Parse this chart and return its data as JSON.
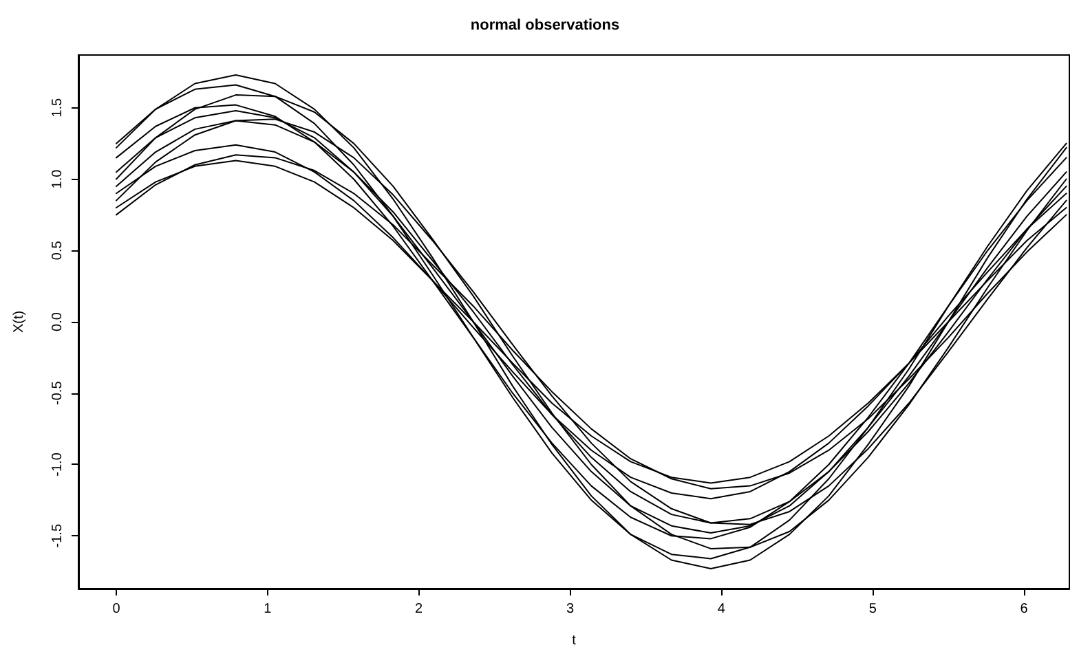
{
  "chart_data": {
    "type": "line",
    "title": "normal observations",
    "xlabel": "t",
    "ylabel": "X(t)",
    "x": [
      0,
      0.26,
      0.52,
      0.79,
      1.05,
      1.31,
      1.57,
      1.83,
      2.09,
      2.36,
      2.62,
      2.88,
      3.14,
      3.4,
      3.67,
      3.93,
      4.19,
      4.45,
      4.71,
      4.97,
      5.24,
      5.5,
      5.76,
      6.02,
      6.28
    ],
    "series": [
      {
        "color": "#000000",
        "values": [
          1.22,
          1.49,
          1.67,
          1.73,
          1.67,
          1.49,
          1.22,
          0.86,
          0.45,
          0,
          -0.45,
          -0.86,
          -1.22,
          -1.49,
          -1.67,
          -1.73,
          -1.67,
          -1.49,
          -1.22,
          -0.86,
          -0.45,
          0,
          0.45,
          0.86,
          1.22
        ]
      },
      {
        "color": "#000000",
        "values": [
          1.25,
          1.49,
          1.63,
          1.66,
          1.58,
          1.39,
          1.1,
          0.74,
          0.33,
          -0.11,
          -0.53,
          -0.92,
          -1.25,
          -1.49,
          -1.63,
          -1.66,
          -1.58,
          -1.39,
          -1.1,
          -0.74,
          -0.33,
          0.11,
          0.53,
          0.92,
          1.25
        ]
      },
      {
        "color": "#000000",
        "values": [
          1.0,
          1.29,
          1.49,
          1.59,
          1.58,
          1.47,
          1.25,
          0.95,
          0.58,
          0.18,
          -0.24,
          -0.64,
          -1.0,
          -1.29,
          -1.49,
          -1.59,
          -1.58,
          -1.47,
          -1.25,
          -0.95,
          -0.58,
          -0.18,
          0.24,
          0.64,
          1.0
        ]
      },
      {
        "color": "#000000",
        "values": [
          1.15,
          1.37,
          1.5,
          1.52,
          1.44,
          1.26,
          1.0,
          0.67,
          0.29,
          -0.11,
          -0.5,
          -0.85,
          -1.15,
          -1.37,
          -1.5,
          -1.52,
          -1.44,
          -1.26,
          -1.0,
          -0.67,
          -0.29,
          0.11,
          0.5,
          0.85,
          1.15
        ]
      },
      {
        "color": "#000000",
        "values": [
          0.95,
          1.19,
          1.35,
          1.41,
          1.38,
          1.26,
          1.05,
          0.77,
          0.43,
          0.07,
          -0.3,
          -0.65,
          -0.95,
          -1.19,
          -1.35,
          -1.41,
          -1.38,
          -1.26,
          -1.05,
          -0.77,
          -0.43,
          -0.07,
          0.3,
          0.65,
          0.95
        ]
      },
      {
        "color": "#000000",
        "values": [
          0.85,
          1.12,
          1.31,
          1.41,
          1.42,
          1.33,
          1.15,
          0.89,
          0.57,
          0.21,
          -0.16,
          -0.52,
          -0.85,
          -1.12,
          -1.31,
          -1.41,
          -1.42,
          -1.33,
          -1.15,
          -0.89,
          -0.57,
          -0.21,
          0.16,
          0.52,
          0.85
        ]
      },
      {
        "color": "#000000",
        "values": [
          1.05,
          1.29,
          1.43,
          1.48,
          1.43,
          1.29,
          1.05,
          0.74,
          0.38,
          0,
          -0.38,
          -0.74,
          -1.05,
          -1.29,
          -1.43,
          -1.48,
          -1.43,
          -1.29,
          -1.05,
          -0.74,
          -0.38,
          0,
          0.38,
          0.74,
          1.05
        ]
      },
      {
        "color": "#000000",
        "values": [
          0.9,
          1.09,
          1.2,
          1.24,
          1.19,
          1.05,
          0.85,
          0.59,
          0.29,
          -0.04,
          -0.35,
          -0.65,
          -0.9,
          -1.09,
          -1.2,
          -1.24,
          -1.19,
          -1.05,
          -0.85,
          -0.59,
          -0.29,
          0.04,
          0.35,
          0.65,
          0.9
        ]
      },
      {
        "color": "#000000",
        "values": [
          0.8,
          0.98,
          1.09,
          1.13,
          1.09,
          0.98,
          0.8,
          0.57,
          0.29,
          0,
          -0.29,
          -0.57,
          -0.8,
          -0.98,
          -1.09,
          -1.13,
          -1.09,
          -0.98,
          -0.8,
          -0.57,
          -0.29,
          0,
          0.29,
          0.57,
          0.8
        ]
      },
      {
        "color": "#000000",
        "values": [
          0.75,
          0.96,
          1.1,
          1.17,
          1.15,
          1.06,
          0.9,
          0.68,
          0.4,
          0.11,
          -0.2,
          -0.49,
          -0.75,
          -0.96,
          -1.1,
          -1.17,
          -1.15,
          -1.06,
          -0.9,
          -0.68,
          -0.4,
          -0.11,
          0.2,
          0.49,
          0.75
        ]
      }
    ],
    "xlim": [
      -0.25,
      6.3
    ],
    "ylim": [
      -1.87,
      1.87
    ],
    "xticks": [
      0,
      1,
      2,
      3,
      4,
      5,
      6
    ],
    "yticks": [
      {
        "value": -1.5,
        "label": "-1.5"
      },
      {
        "value": -1,
        "label": "-1.0"
      },
      {
        "value": -0.5,
        "label": "-0.5"
      },
      {
        "value": 0,
        "label": "0.0"
      },
      {
        "value": 0.5,
        "label": "0.5"
      },
      {
        "value": 1,
        "label": "1.0"
      },
      {
        "value": 1.5,
        "label": "1.5"
      }
    ],
    "grid": false,
    "marker": "none",
    "line_style": "solid"
  }
}
